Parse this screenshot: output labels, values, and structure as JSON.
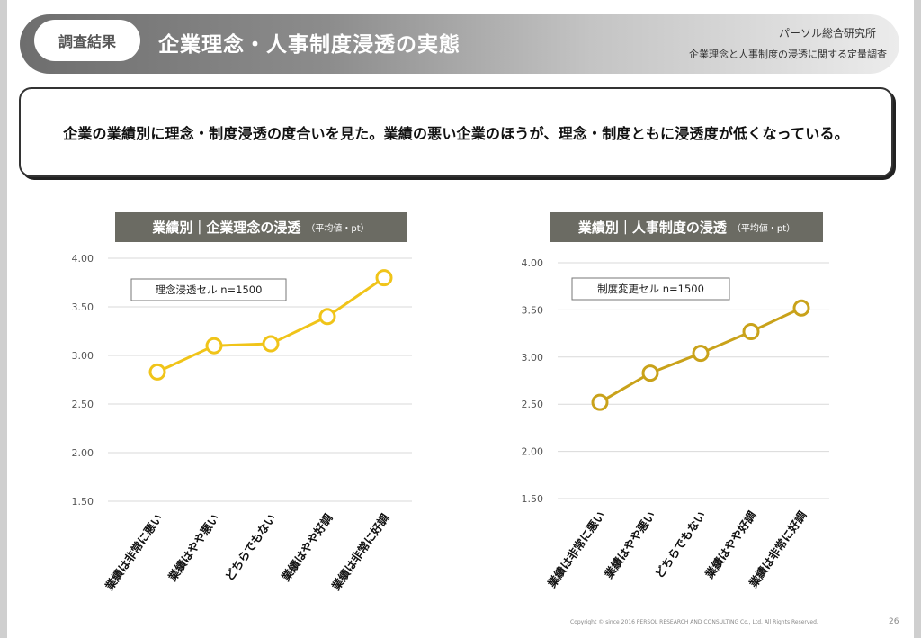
{
  "header": {
    "tag": "調査結果",
    "title": "企業理念・人事制度浸透の実態",
    "org": "パーソル総合研究所",
    "study": "企業理念と人事制度の浸透に関する定量調査"
  },
  "summary": "企業の業績別に理念・制度浸透の度合いを見た。業績の悪い企業のほうが、理念・制度ともに浸透度が低くなっている。",
  "charts": [
    {
      "title": "業績別｜企業理念の浸透",
      "unit": "（平均値・pt）"
    },
    {
      "title": "業績別｜人事制度の浸透",
      "unit": "（平均値・pt）"
    }
  ],
  "chart_data": [
    {
      "type": "line",
      "title": "業績別｜企業理念の浸透",
      "unit": "（平均値・pt）",
      "categories": [
        "業績は非常に悪い",
        "業績はやや悪い",
        "どちらでもない",
        "業績はやや好調",
        "業績は非常に好調"
      ],
      "series": [
        {
          "name": "理念浸透セル n=1500",
          "values": [
            2.83,
            3.1,
            3.12,
            3.4,
            3.8
          ]
        }
      ],
      "ylim": [
        1.5,
        4.0
      ],
      "yticks": [
        "1.50",
        "2.00",
        "2.50",
        "3.00",
        "3.50",
        "4.00"
      ],
      "grid": true,
      "color": "#f0c419"
    },
    {
      "type": "line",
      "title": "業績別｜人事制度の浸透",
      "unit": "（平均値・pt）",
      "categories": [
        "業績は非常に悪い",
        "業績はやや悪い",
        "どちらでもない",
        "業績はやや好調",
        "業績は非常に好調"
      ],
      "series": [
        {
          "name": "制度変更セル n=1500",
          "values": [
            2.52,
            2.83,
            3.04,
            3.27,
            3.52
          ]
        }
      ],
      "ylim": [
        1.5,
        4.0
      ],
      "yticks": [
        "1.50",
        "2.00",
        "2.50",
        "3.00",
        "3.50",
        "4.00"
      ],
      "grid": true,
      "color": "#c9a21a"
    }
  ],
  "footer": {
    "copyright": "Copyright © since 2016 PERSOL RESEARCH AND CONSULTING Co., Ltd. All Rights Reserved.",
    "page": "26"
  }
}
